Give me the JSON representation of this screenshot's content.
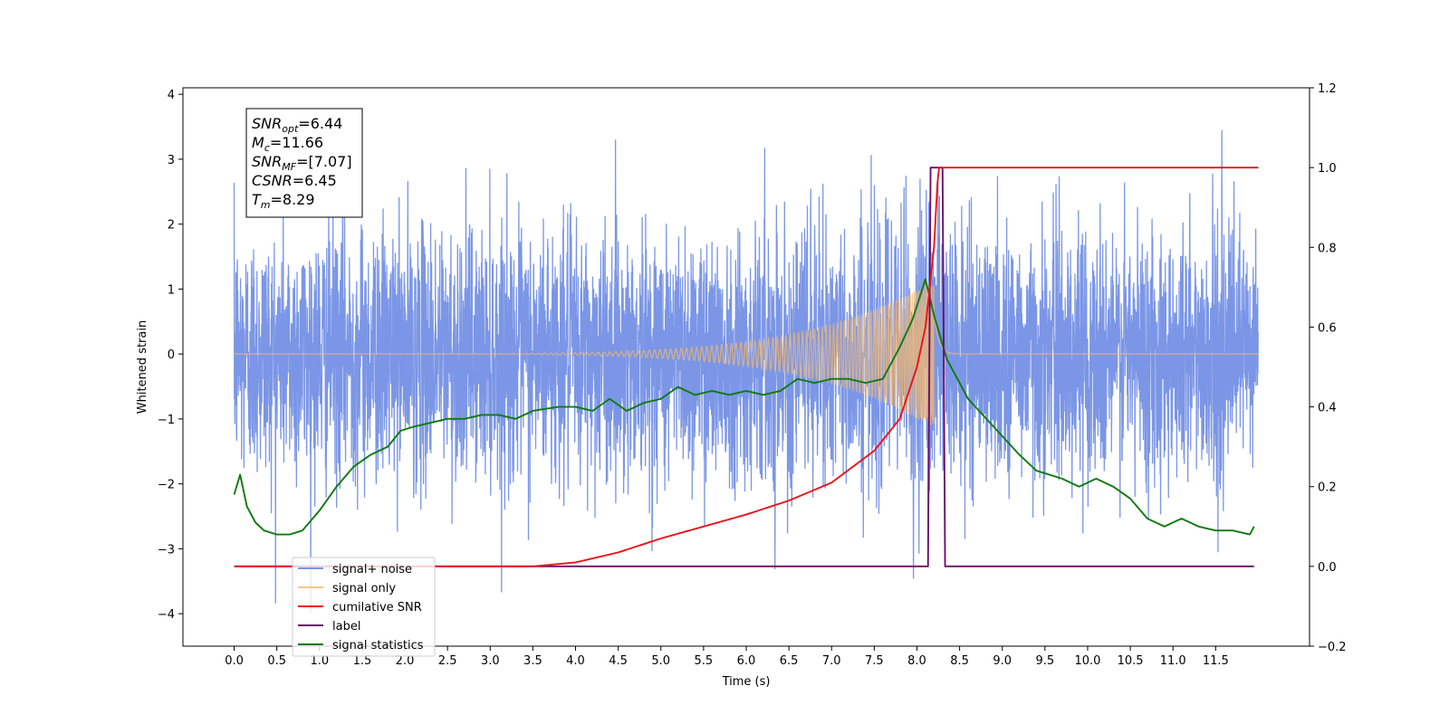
{
  "chart_data": {
    "type": "line",
    "xlabel": "Time (s)",
    "ylabel": "Whitened strain",
    "xlim": [
      -0.6,
      12.6
    ],
    "ylim": [
      -4.5,
      4.1
    ],
    "ylim_right": [
      -0.2,
      1.2
    ],
    "x_ticks": [
      "0.0",
      "0.5",
      "1.0",
      "1.5",
      "2.0",
      "2.5",
      "3.0",
      "3.5",
      "4.0",
      "4.5",
      "5.0",
      "5.5",
      "6.0",
      "6.5",
      "7.0",
      "7.5",
      "8.0",
      "8.5",
      "9.0",
      "9.5",
      "10.0",
      "10.5",
      "11.0",
      "11.5"
    ],
    "y_ticks_left": [
      "−4",
      "−3",
      "−2",
      "−1",
      "0",
      "1",
      "2",
      "3",
      "4"
    ],
    "y_ticks_right": [
      "−0.2",
      "0.0",
      "0.2",
      "0.4",
      "0.6",
      "0.8",
      "1.0",
      "1.2"
    ],
    "grid": false,
    "legend_position": "lower-left",
    "annotation": [
      {
        "base": "SNR",
        "sub": "opt",
        "value": "=6.44"
      },
      {
        "base": "M",
        "sub": "c",
        "value": "=11.66"
      },
      {
        "base": "SNR",
        "sub": "MF",
        "value": "=[7.07]"
      },
      {
        "base": "CSNR",
        "sub": "",
        "value": "=6.45"
      },
      {
        "base": "T",
        "sub": "m",
        "value": "=8.29"
      }
    ],
    "series": [
      {
        "name": "signal+ noise",
        "color": "#7b96e6",
        "axis": "left",
        "description": "whitened noisy strain, approx. unit-variance noise spanning about -2.5..2.5 with peaks near ±3.7",
        "x_range": [
          0,
          12.0
        ],
        "noise_std": 0.95,
        "min_value": -4.1,
        "max_value": 3.7
      },
      {
        "name": "signal only",
        "color": "#f5b86c",
        "axis": "left",
        "description": "chirp waveform, amplitude grows from ~0 to ~1.1 peaking near t=8.2 then rings down",
        "peak_time": 8.2,
        "peak_amplitude": 1.15
      },
      {
        "name": "cumilative SNR",
        "color": "#e8141c",
        "axis": "right",
        "x": [
          0.0,
          3.5,
          4.0,
          4.5,
          5.0,
          5.5,
          6.0,
          6.5,
          7.0,
          7.5,
          7.8,
          8.0,
          8.1,
          8.2,
          8.25,
          8.3,
          12.0
        ],
        "y": [
          0.0,
          0.0,
          0.01,
          0.035,
          0.07,
          0.1,
          0.13,
          0.165,
          0.21,
          0.29,
          0.37,
          0.5,
          0.6,
          0.8,
          1.0,
          1.0,
          1.0
        ]
      },
      {
        "name": "label",
        "color": "#6b0f6b",
        "axis": "right",
        "x": [
          0.0,
          8.13,
          8.16,
          8.3,
          8.33,
          11.95
        ],
        "y": [
          0.0,
          0.0,
          1.0,
          1.0,
          0.0,
          0.0
        ]
      },
      {
        "name": "signal statistics",
        "color": "#0f7a0f",
        "axis": "right",
        "x": [
          0.0,
          0.07,
          0.15,
          0.25,
          0.35,
          0.5,
          0.65,
          0.8,
          1.0,
          1.2,
          1.4,
          1.6,
          1.8,
          1.95,
          2.1,
          2.3,
          2.5,
          2.7,
          2.9,
          3.1,
          3.3,
          3.5,
          3.8,
          4.0,
          4.2,
          4.4,
          4.6,
          4.8,
          5.0,
          5.2,
          5.4,
          5.6,
          5.8,
          6.0,
          6.2,
          6.4,
          6.6,
          6.8,
          7.0,
          7.2,
          7.4,
          7.6,
          7.8,
          7.95,
          8.1,
          8.2,
          8.35,
          8.6,
          8.9,
          9.2,
          9.4,
          9.7,
          9.9,
          10.1,
          10.3,
          10.5,
          10.7,
          10.9,
          11.1,
          11.3,
          11.5,
          11.7,
          11.9,
          11.95
        ],
        "y": [
          0.18,
          0.23,
          0.15,
          0.11,
          0.09,
          0.08,
          0.08,
          0.09,
          0.14,
          0.2,
          0.25,
          0.28,
          0.3,
          0.34,
          0.35,
          0.36,
          0.37,
          0.37,
          0.38,
          0.38,
          0.37,
          0.39,
          0.4,
          0.4,
          0.39,
          0.42,
          0.39,
          0.41,
          0.42,
          0.45,
          0.43,
          0.44,
          0.43,
          0.44,
          0.43,
          0.44,
          0.47,
          0.46,
          0.47,
          0.47,
          0.46,
          0.47,
          0.55,
          0.62,
          0.72,
          0.63,
          0.52,
          0.42,
          0.35,
          0.28,
          0.24,
          0.22,
          0.2,
          0.22,
          0.2,
          0.17,
          0.12,
          0.1,
          0.12,
          0.1,
          0.09,
          0.09,
          0.08,
          0.1
        ]
      }
    ]
  }
}
